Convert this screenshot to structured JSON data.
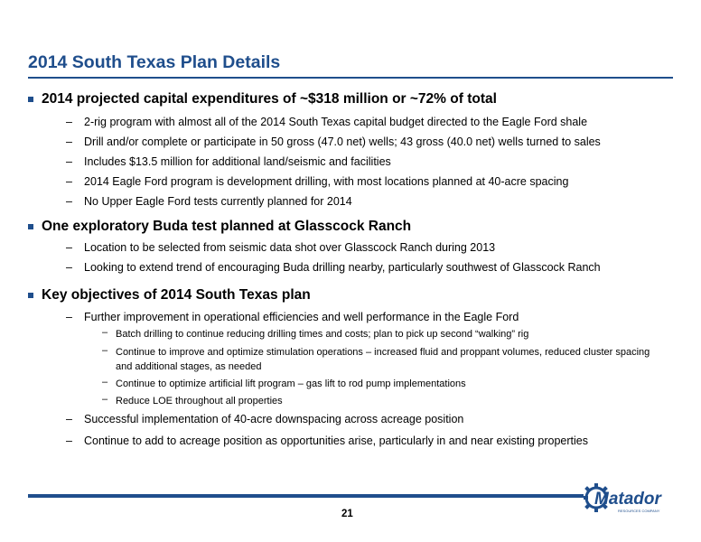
{
  "title": "2014 South Texas Plan Details",
  "sections": [
    {
      "heading": "2014 projected capital expenditures of ~$318 million or ~72% of total",
      "items": [
        "2-rig program with almost all of the 2014 South Texas capital budget directed to the Eagle Ford shale",
        "Drill and/or complete or participate in 50 gross (47.0 net) wells; 43 gross (40.0 net) wells turned to sales",
        "Includes $13.5 million for additional land/seismic and facilities",
        "2014 Eagle Ford program is development drilling, with most locations planned at 40-acre spacing",
        "No Upper Eagle Ford tests currently planned for 2014"
      ]
    },
    {
      "heading": "One exploratory Buda test planned at Glasscock Ranch",
      "items": [
        "Location to be selected from seismic data shot over Glasscock Ranch during 2013",
        "Looking to extend trend of encouraging Buda drilling nearby, particularly southwest of Glasscock Ranch"
      ]
    },
    {
      "heading": "Key objectives of 2014 South Texas plan",
      "items": [
        "Further improvement in operational efficiencies and well performance in the Eagle Ford",
        "Successful implementation of 40-acre downspacing across acreage position",
        "Continue to add to acreage position as opportunities arise, particularly in and near existing properties"
      ],
      "subitems": [
        "Batch drilling to continue reducing drilling times and costs; plan to pick up second “walking” rig",
        "Continue to improve and optimize stimulation operations – increased fluid and proppant volumes, reduced cluster spacing and additional stages, as needed",
        "Continue to optimize artificial lift program – gas lift to rod pump implementations",
        "Reduce LOE throughout all properties"
      ]
    }
  ],
  "dash": "–",
  "page_number": "21",
  "logo": {
    "text": "Matador",
    "tagline": "RESOURCES COMPANY"
  },
  "colors": {
    "accent": "#1f4e8c"
  }
}
